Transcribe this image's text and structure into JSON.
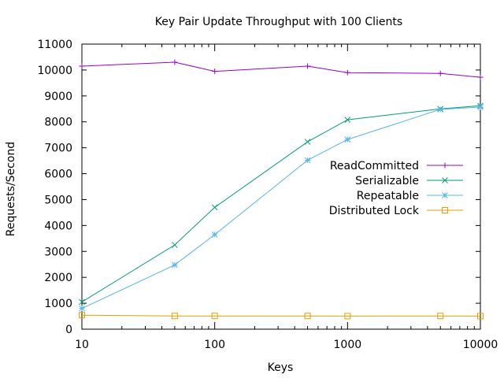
{
  "chart_data": {
    "type": "line",
    "title": "Key Pair Update Throughput with 100 Clients",
    "xlabel": "Keys",
    "ylabel": "Requests/Second",
    "x_scale": "log",
    "xlim": [
      10,
      10000
    ],
    "ylim": [
      0,
      11000
    ],
    "x_ticks": [
      10,
      100,
      1000,
      10000
    ],
    "x_tick_labels": [
      "10",
      "100",
      "1000",
      "10000"
    ],
    "y_ticks": [
      0,
      1000,
      2000,
      3000,
      4000,
      5000,
      6000,
      7000,
      8000,
      9000,
      10000,
      11000
    ],
    "y_tick_labels": [
      "0",
      "1000",
      "2000",
      "3000",
      "4000",
      "5000",
      "6000",
      "7000",
      "8000",
      "9000",
      "10000",
      "11000"
    ],
    "grid": false,
    "legend_position": "right-middle",
    "x": [
      10,
      50,
      100,
      500,
      1000,
      5000,
      10000
    ],
    "series": [
      {
        "name": "ReadCommitted",
        "color": "#9400d3",
        "marker": "plus",
        "values": [
          10150,
          10300,
          9950,
          10150,
          9900,
          9870,
          9720
        ]
      },
      {
        "name": "Serializable",
        "color": "#009e73",
        "marker": "cross",
        "values": [
          1050,
          3250,
          4700,
          7230,
          8080,
          8500,
          8620
        ]
      },
      {
        "name": "Repeatable",
        "color": "#56b4e9",
        "marker": "star",
        "values": [
          800,
          2480,
          3650,
          6520,
          7320,
          8480,
          8570
        ]
      },
      {
        "name": "Distributed Lock",
        "color": "#e69f00",
        "marker": "square",
        "values": [
          540,
          510,
          510,
          510,
          505,
          510,
          505
        ]
      }
    ]
  }
}
